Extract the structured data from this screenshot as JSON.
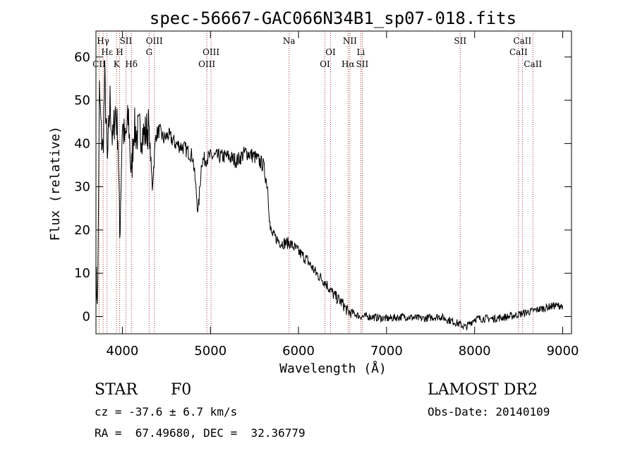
{
  "chart_data": {
    "type": "line",
    "title": "spec-56667-GAC066N34B1_sp07-018.fits",
    "xlabel": "Wavelength (Å)",
    "ylabel": "Flux (relative)",
    "xlim": [
      3700,
      9100
    ],
    "ylim": [
      -4,
      66
    ],
    "xticks": [
      4000,
      5000,
      6000,
      7000,
      8000,
      9000
    ],
    "yticks": [
      0,
      10,
      20,
      30,
      40,
      50,
      60
    ],
    "grid": false,
    "line_color": "#000000",
    "marker_color": "#aa3333",
    "series": [
      {
        "x": [
          3700,
          3720,
          3740,
          3760,
          3780,
          3800,
          3830,
          3860,
          3890,
          3920,
          3950,
          3970,
          4000,
          4030,
          4070,
          4102,
          4130,
          4160,
          4200,
          4250,
          4300,
          4340,
          4380,
          4420,
          4470,
          4520,
          4600,
          4700,
          4800,
          4861,
          4900,
          5000,
          5100,
          5200,
          5300,
          5400,
          5500,
          5600,
          5650,
          5680,
          5700,
          5800,
          5900,
          6000,
          6100,
          6200,
          6300,
          6400,
          6500,
          6563,
          6600,
          6700,
          6800,
          7000,
          7200,
          7400,
          7600,
          7800,
          7900,
          8000,
          8200,
          8400,
          8500,
          8600,
          8700,
          8800,
          8900,
          9000
        ],
        "y": [
          8,
          5,
          52,
          42,
          38,
          55,
          35,
          50,
          40,
          48,
          42,
          18,
          45,
          40,
          46,
          32,
          44,
          42,
          43,
          42,
          44,
          30,
          42,
          43,
          41,
          42,
          40,
          39,
          37,
          24,
          36,
          37,
          37,
          37,
          36,
          38,
          37,
          35,
          30,
          20,
          19,
          17,
          17,
          15,
          13,
          10,
          8,
          5,
          3,
          1,
          1,
          0,
          0,
          -0.5,
          0,
          -0.5,
          0,
          -1.5,
          -2.5,
          -0.5,
          -0.5,
          0,
          0.5,
          1,
          1.5,
          2,
          2.5,
          2.5
        ]
      }
    ],
    "lines": [
      {
        "label": "Hγ",
        "x": 3781,
        "row": 0
      },
      {
        "label": "Hε",
        "x": 3826,
        "row": 1
      },
      {
        "label": "CII",
        "x": 3736,
        "row": 2
      },
      {
        "label": "K",
        "x": 3934,
        "row": 2
      },
      {
        "label": "H",
        "x": 3969,
        "row": 1
      },
      {
        "label": "SII",
        "x": 4040,
        "row": 0
      },
      {
        "label": "Hδ",
        "x": 4102,
        "row": 2
      },
      {
        "label": "OIII",
        "x": 4363,
        "row": 0
      },
      {
        "label": "G",
        "x": 4304,
        "row": 1
      },
      {
        "label": "OIII",
        "x": 5007,
        "row": 1
      },
      {
        "label": "OIII",
        "x": 4959,
        "row": 2
      },
      {
        "label": "Na",
        "x": 5893,
        "row": 0
      },
      {
        "label": "OI",
        "x": 6364,
        "row": 1
      },
      {
        "label": "OI",
        "x": 6300,
        "row": 2
      },
      {
        "label": "NII",
        "x": 6583,
        "row": 0
      },
      {
        "label": "Hα",
        "x": 6563,
        "row": 2
      },
      {
        "label": "Li",
        "x": 6708,
        "row": 1
      },
      {
        "label": "SII",
        "x": 6724,
        "row": 2
      },
      {
        "label": "SII",
        "x": 7836,
        "row": 0
      },
      {
        "label": "CaII",
        "x": 8542,
        "row": 0
      },
      {
        "label": "CaII",
        "x": 8498,
        "row": 1
      },
      {
        "label": "CaII",
        "x": 8662,
        "row": 2
      }
    ]
  },
  "footer": {
    "object_class": "STAR",
    "subclass": "F0",
    "survey": "LAMOST DR2",
    "cz": "cz = -37.6 ± 6.7 km/s",
    "obs_date": "Obs-Date: 20140109",
    "coords": "RA =  67.49680, DEC =  32.36779"
  }
}
